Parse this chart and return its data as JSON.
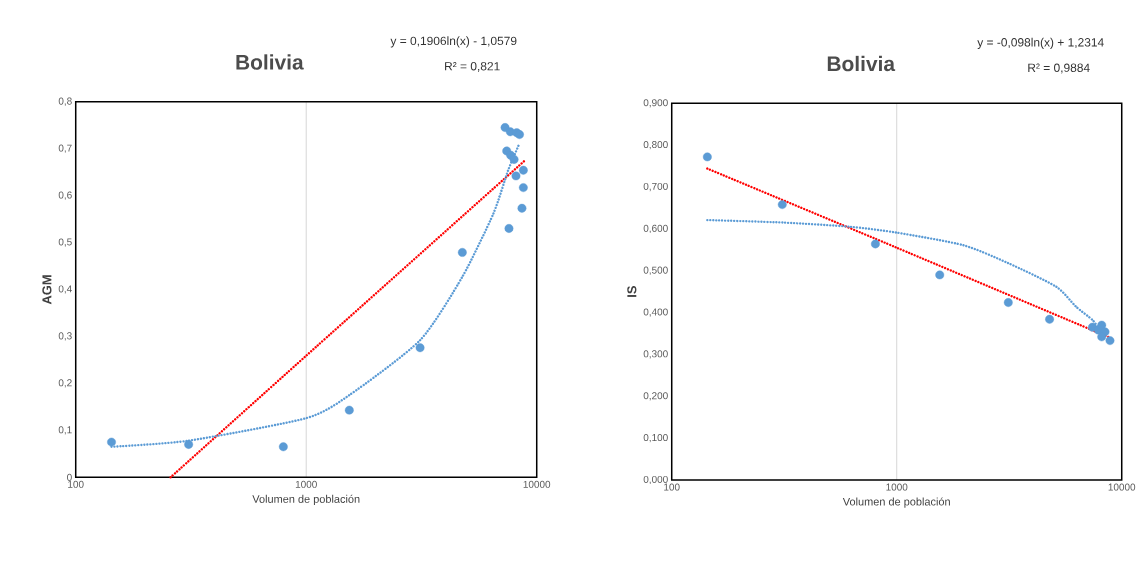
{
  "chart_data": [
    {
      "type": "scatter",
      "title": "Bolivia",
      "xlabel": "Volumen de población",
      "ylabel": "AGM",
      "annotations": [
        "y = 0,1906ln(x) - 1,0579",
        "R² = 0,821"
      ],
      "log": "x",
      "grid": "x",
      "xlim": [
        100,
        10000
      ],
      "xticks": [
        100,
        1000,
        10000
      ],
      "ylim": [
        0,
        0.8
      ],
      "yticks": [
        {
          "value": 0,
          "label": "0"
        },
        {
          "value": 0.1,
          "label": "0,1"
        },
        {
          "value": 0.2,
          "label": "0,2"
        },
        {
          "value": 0.3,
          "label": "0,3"
        },
        {
          "value": 0.4,
          "label": "0,4"
        },
        {
          "value": 0.5,
          "label": "0,5"
        },
        {
          "value": 0.6,
          "label": "0,6"
        },
        {
          "value": 0.7,
          "label": "0,7"
        },
        {
          "value": 0.8,
          "label": "0,8"
        }
      ],
      "series": [
        {
          "color": "#5b9bd5",
          "marker": "circle",
          "x": [
            143,
            309,
            796,
            1538,
            3119,
            4757,
            7580,
            8630,
            8750,
            8750,
            8130,
            7410,
            7710,
            7980,
            7290,
            7680,
            8190,
            8420
          ],
          "values": [
            0.075,
            0.07,
            0.065,
            0.143,
            0.276,
            0.479,
            0.53,
            0.573,
            0.617,
            0.654,
            0.642,
            0.695,
            0.686,
            0.677,
            0.745,
            0.736,
            0.734,
            0.73
          ]
        },
        {
          "type": "line",
          "color": "#ff0000",
          "line_style": "dotted",
          "x": [
            258,
            1000,
            8800
          ],
          "values": [
            0.0,
            0.259,
            0.673
          ]
        },
        {
          "type": "line",
          "color": "#5b9bd5",
          "line_style": "dotted",
          "x": [
            143,
            309,
            1000,
            1538,
            3119,
            4757,
            6490,
            7520,
            8420
          ],
          "values": [
            0.065,
            0.078,
            0.126,
            0.175,
            0.292,
            0.427,
            0.562,
            0.654,
            0.711
          ]
        }
      ]
    },
    {
      "type": "scatter",
      "title": "Bolivia",
      "xlabel": "Volumen de población",
      "ylabel": "IS",
      "annotations": [
        "y = -0,098ln(x) + 1,2314",
        "R² = 0,9884"
      ],
      "log": "x",
      "grid": "x",
      "xlim": [
        100,
        10000
      ],
      "xticks": [
        100,
        1000,
        10000
      ],
      "ylim": [
        0,
        0.9
      ],
      "yticks": [
        {
          "value": 0,
          "label": "0,000"
        },
        {
          "value": 0.1,
          "label": "0,100"
        },
        {
          "value": 0.2,
          "label": "0,200"
        },
        {
          "value": 0.3,
          "label": "0,300"
        },
        {
          "value": 0.4,
          "label": "0,400"
        },
        {
          "value": 0.5,
          "label": "0,500"
        },
        {
          "value": 0.6,
          "label": "0,600"
        },
        {
          "value": 0.7,
          "label": "0,700"
        },
        {
          "value": 0.8,
          "label": "0,800"
        },
        {
          "value": 0.9,
          "label": "0,900"
        }
      ],
      "series": [
        {
          "color": "#5b9bd5",
          "marker": "circle",
          "x": [
            144,
            310,
            804,
            1553,
            3133,
            4779,
            7410,
            7880,
            8150,
            8430,
            8150,
            8870
          ],
          "values": [
            0.772,
            0.658,
            0.564,
            0.49,
            0.424,
            0.384,
            0.365,
            0.358,
            0.37,
            0.354,
            0.342,
            0.333
          ]
        },
        {
          "type": "line",
          "color": "#ff0000",
          "line_style": "dotted",
          "x": [
            144,
            1000,
            8870
          ],
          "values": [
            0.744,
            0.555,
            0.34
          ]
        },
        {
          "type": "line",
          "color": "#5b9bd5",
          "line_style": "dotted",
          "x": [
            144,
            313,
            620,
            1000,
            1978,
            3133,
            5108,
            6270,
            7430,
            7880
          ],
          "values": [
            0.621,
            0.615,
            0.605,
            0.591,
            0.561,
            0.518,
            0.462,
            0.414,
            0.382,
            0.362
          ]
        }
      ]
    }
  ]
}
